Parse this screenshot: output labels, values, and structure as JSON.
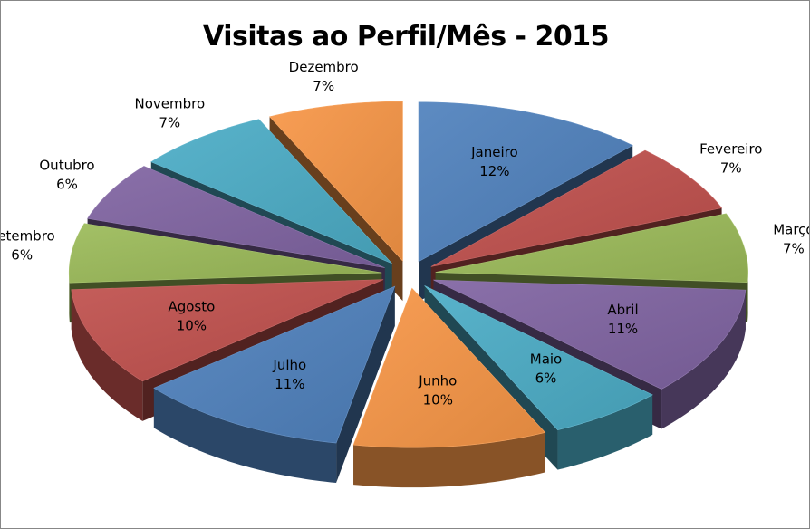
{
  "chart_data": {
    "type": "pie",
    "subtype": "exploded-3d",
    "title": "Visitas ao Perfil/Mês - 2015",
    "categories": [
      "Janeiro",
      "Fevereiro",
      "Março",
      "Abril",
      "Maio",
      "Junho",
      "Julho",
      "Agosto",
      "Setembro",
      "Outubro",
      "Novembro",
      "Dezembro"
    ],
    "values": [
      12,
      7,
      7,
      11,
      6,
      10,
      11,
      10,
      6,
      6,
      7,
      7
    ],
    "value_labels": [
      "12%",
      "7%",
      "7%",
      "11%",
      "6%",
      "10%",
      "11%",
      "10%",
      "6%",
      "6%",
      "7%",
      "7%"
    ],
    "colors": [
      "#4f81bd",
      "#c0504d",
      "#9bbb59",
      "#8064a2",
      "#4bacc6",
      "#f79646",
      "#4f81bd",
      "#c0504d",
      "#9bbb59",
      "#8064a2",
      "#4bacc6",
      "#f79646"
    ],
    "legend": "none"
  }
}
